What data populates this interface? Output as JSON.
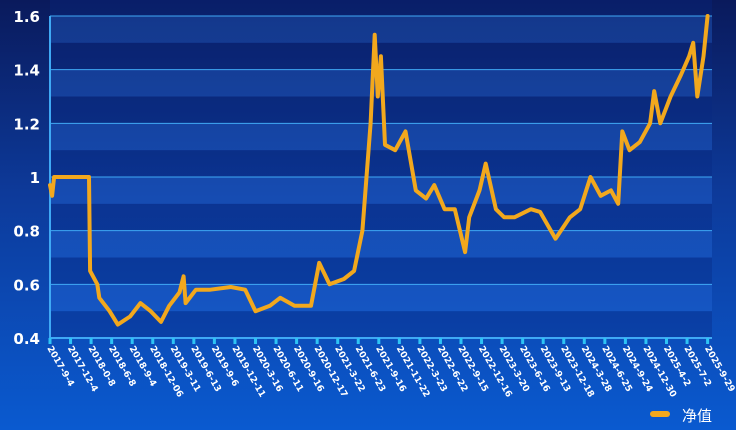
{
  "chart_data": {
    "type": "line",
    "title": "",
    "xlabel": "",
    "ylabel": "",
    "ylim": [
      0.4,
      1.6
    ],
    "yticks": [
      "0.4",
      "0.6",
      "0.8",
      "1",
      "1.2",
      "1.4",
      "1.6"
    ],
    "ytick_values": [
      0.4,
      0.6,
      0.8,
      1.0,
      1.2,
      1.4,
      1.6
    ],
    "categories": [
      "2017-9-4",
      "2017-12-4",
      "2018-0-8",
      "2018-6-8",
      "2018-9-4",
      "2018-12-06",
      "2019-3-11",
      "2019-6-13",
      "2019-9-6",
      "2019-12-11",
      "2020-3-16",
      "2020-6-11",
      "2020-9-16",
      "2020-12-17",
      "2021-3-22",
      "2021-6-23",
      "2021-9-16",
      "2021-11-22",
      "2022-3-23",
      "2022-6-22",
      "2022-9-15",
      "2022-12-16",
      "2023-3-20",
      "2023-6-16",
      "2023-9-13",
      "2023-12-18",
      "2024-3-28",
      "2024-6-25",
      "2024-9-24",
      "2024-12-30",
      "2025-4-2",
      "2025-7-2",
      "2025-9-29"
    ],
    "grid": true,
    "legend": "bottom-right",
    "series": [
      {
        "name": "净值",
        "color": "#f2a81d",
        "points": [
          [
            0,
            0.97
          ],
          [
            0.1,
            0.93
          ],
          [
            0.2,
            1.0
          ],
          [
            1.9,
            1.0
          ],
          [
            1.95,
            0.65
          ],
          [
            2.3,
            0.6
          ],
          [
            2.4,
            0.55
          ],
          [
            2.9,
            0.5
          ],
          [
            3.3,
            0.45
          ],
          [
            3.9,
            0.48
          ],
          [
            4.4,
            0.53
          ],
          [
            4.9,
            0.5
          ],
          [
            5.4,
            0.46
          ],
          [
            5.8,
            0.52
          ],
          [
            6.3,
            0.57
          ],
          [
            6.5,
            0.63
          ],
          [
            6.6,
            0.53
          ],
          [
            7.1,
            0.58
          ],
          [
            7.8,
            0.58
          ],
          [
            8.8,
            0.59
          ],
          [
            9.5,
            0.58
          ],
          [
            10,
            0.5
          ],
          [
            10.7,
            0.52
          ],
          [
            11.2,
            0.55
          ],
          [
            11.9,
            0.52
          ],
          [
            12.7,
            0.52
          ],
          [
            13.1,
            0.68
          ],
          [
            13.6,
            0.6
          ],
          [
            14.3,
            0.62
          ],
          [
            14.8,
            0.65
          ],
          [
            15.2,
            0.8
          ],
          [
            15.6,
            1.2
          ],
          [
            15.8,
            1.53
          ],
          [
            15.95,
            1.3
          ],
          [
            16.1,
            1.45
          ],
          [
            16.3,
            1.12
          ],
          [
            16.8,
            1.1
          ],
          [
            17.3,
            1.17
          ],
          [
            17.8,
            0.95
          ],
          [
            18.3,
            0.92
          ],
          [
            18.7,
            0.97
          ],
          [
            19.2,
            0.88
          ],
          [
            19.7,
            0.88
          ],
          [
            20.2,
            0.72
          ],
          [
            20.4,
            0.85
          ],
          [
            20.9,
            0.95
          ],
          [
            21.2,
            1.05
          ],
          [
            21.7,
            0.88
          ],
          [
            22.1,
            0.85
          ],
          [
            22.6,
            0.85
          ],
          [
            23.4,
            0.88
          ],
          [
            23.85,
            0.87
          ],
          [
            24.6,
            0.77
          ],
          [
            25.3,
            0.85
          ],
          [
            25.8,
            0.88
          ],
          [
            26.3,
            1.0
          ],
          [
            26.8,
            0.93
          ],
          [
            27.3,
            0.95
          ],
          [
            27.65,
            0.9
          ],
          [
            27.85,
            1.17
          ],
          [
            28.2,
            1.1
          ],
          [
            28.7,
            1.13
          ],
          [
            29.2,
            1.2
          ],
          [
            29.4,
            1.32
          ],
          [
            29.7,
            1.2
          ],
          [
            30.2,
            1.3
          ],
          [
            30.7,
            1.38
          ],
          [
            31.1,
            1.45
          ],
          [
            31.3,
            1.5
          ],
          [
            31.5,
            1.3
          ],
          [
            31.8,
            1.45
          ],
          [
            32,
            1.6
          ]
        ]
      }
    ]
  }
}
